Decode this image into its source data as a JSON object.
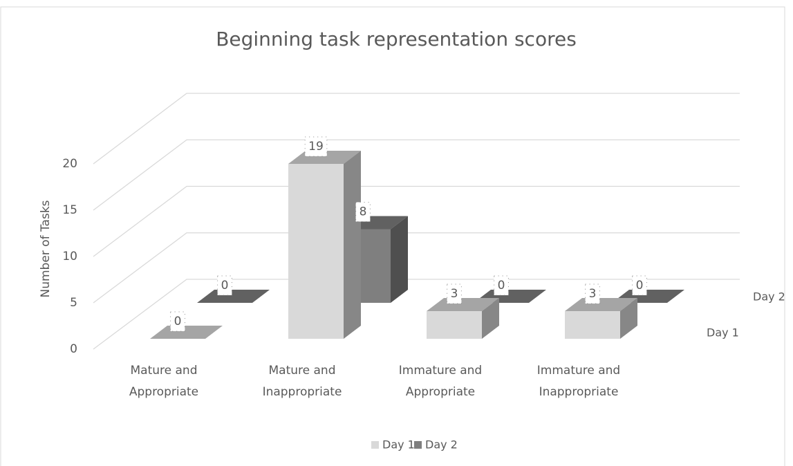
{
  "chart_data": {
    "type": "bar3d",
    "title": "Beginning task representation scores",
    "y_label": "Number of Tasks",
    "categories": [
      "Mature and Appropriate",
      "Mature and Inappropriate",
      "Immature and Appropriate",
      "Immature and Inappropriate"
    ],
    "series": [
      {
        "name": "Day 1",
        "color": "#d9d9d9",
        "values": [
          0,
          19,
          3,
          3
        ]
      },
      {
        "name": "Day 2",
        "color": "#7f7f7f",
        "values": [
          0,
          8,
          0,
          0
        ]
      }
    ],
    "ylim": [
      0,
      20
    ],
    "yticks": [
      0,
      5,
      10,
      15,
      20
    ],
    "grid": true,
    "legend": "bottom"
  }
}
